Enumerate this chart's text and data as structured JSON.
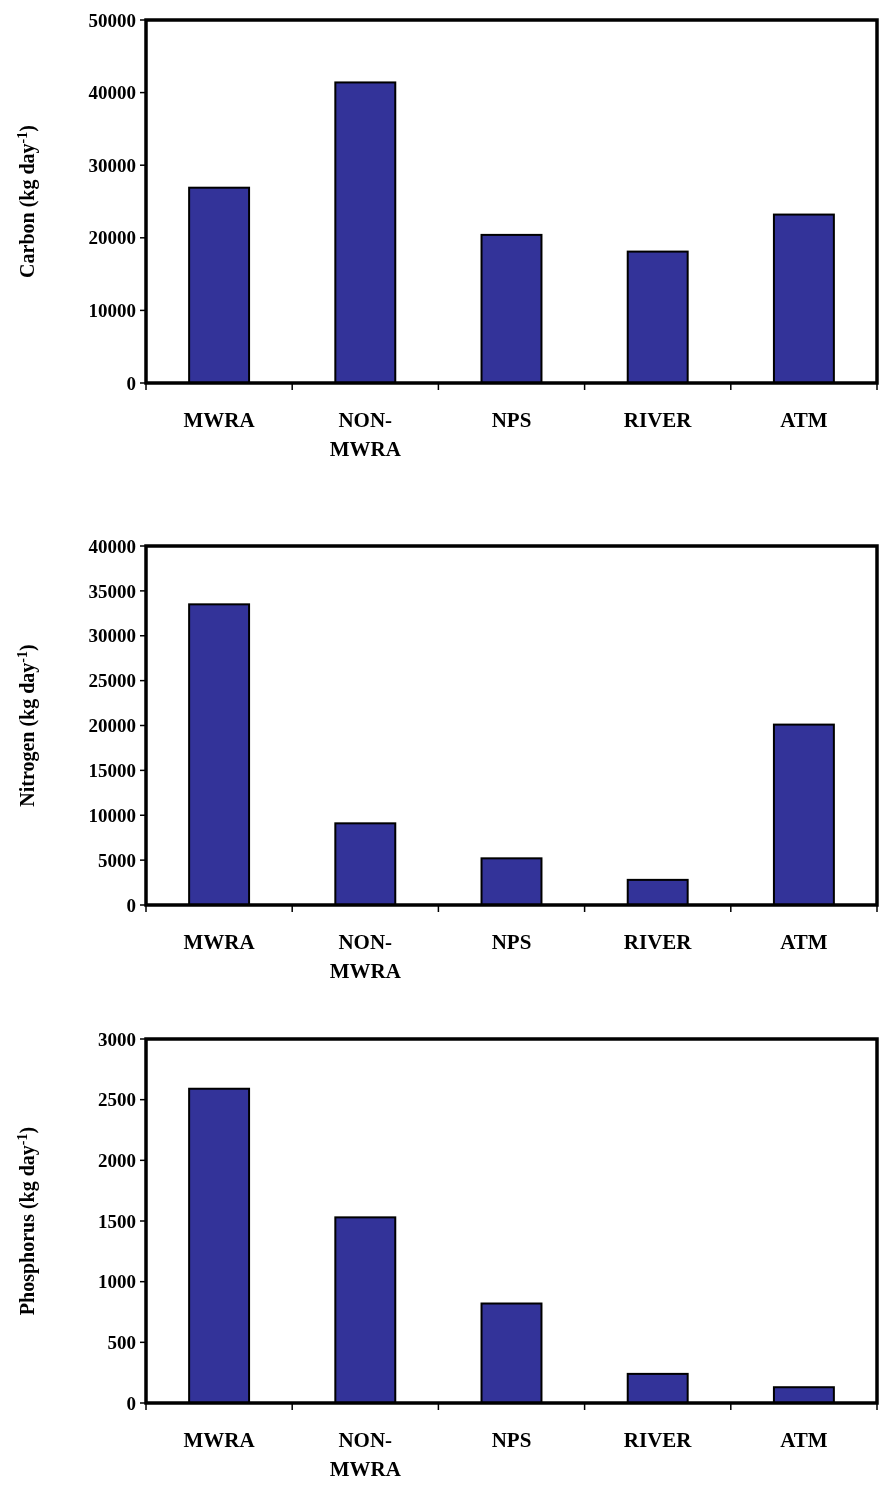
{
  "chart_data": [
    {
      "type": "bar",
      "ylabel": "Carbon (kg day$^{-1}$)",
      "categories": [
        "MWRA",
        "NON-MWRA",
        "NPS",
        "RIVER",
        "ATM"
      ],
      "values": [
        26900,
        41400,
        20400,
        18100,
        23200
      ],
      "color": "#333399",
      "ylim": [
        0,
        50000
      ],
      "yticks": [
        0,
        10000,
        20000,
        30000,
        40000,
        50000
      ],
      "grid": false
    },
    {
      "type": "bar",
      "ylabel": "Nitrogen (kg day$^{-1}$)",
      "categories": [
        "MWRA",
        "NON-MWRA",
        "NPS",
        "RIVER",
        "ATM"
      ],
      "values": [
        33500,
        9100,
        5200,
        2800,
        20100
      ],
      "color": "#333399",
      "ylim": [
        0,
        40000
      ],
      "yticks": [
        0,
        5000,
        10000,
        15000,
        20000,
        25000,
        30000,
        35000,
        40000
      ],
      "grid": false
    },
    {
      "type": "bar",
      "ylabel": "Phosphorus (kg day$^{-1}$)",
      "categories": [
        "MWRA",
        "NON-MWRA",
        "NPS",
        "RIVER",
        "ATM"
      ],
      "values": [
        2590,
        1530,
        820,
        240,
        130
      ],
      "color": "#333399",
      "ylim": [
        0,
        3000
      ],
      "yticks": [
        0,
        500,
        1000,
        1500,
        2000,
        2500,
        3000
      ],
      "grid": false
    }
  ]
}
